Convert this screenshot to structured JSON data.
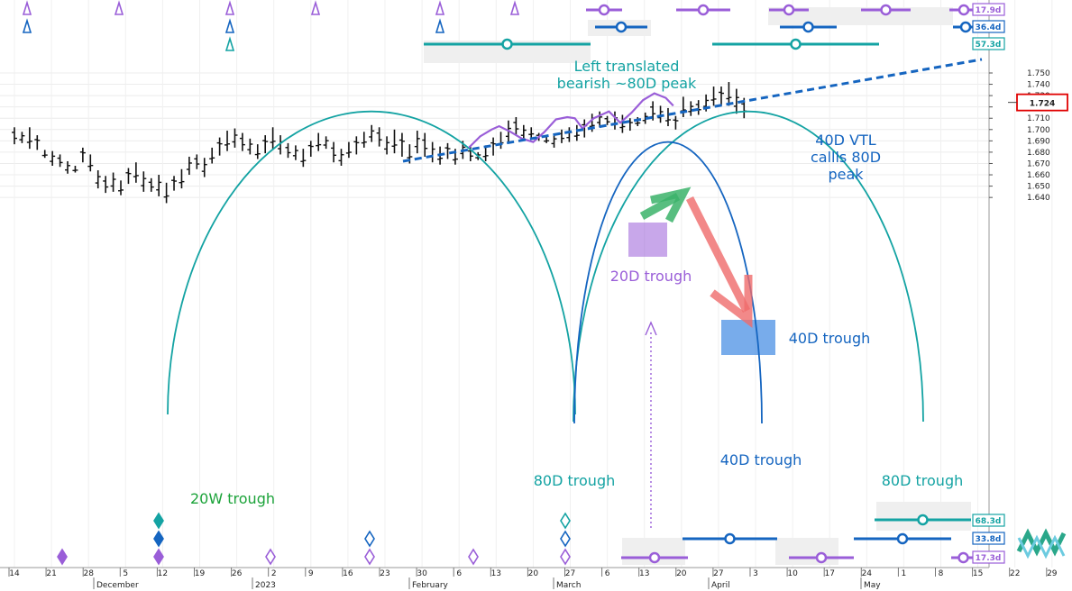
{
  "chart_data": {
    "type": "ohlc",
    "y_axis": {
      "side": "right",
      "range": [
        1.631,
        1.759
      ],
      "ticks": [
        "1.750",
        "1.740",
        "1.730",
        "1.720",
        "1.710",
        "1.700",
        "1.690",
        "1.680",
        "1.670",
        "1.660",
        "1.650",
        "1.640"
      ],
      "grid": true
    },
    "x_axis": {
      "day_labels": [
        "14",
        "21",
        "28",
        "5",
        "12",
        "19",
        "26",
        "2",
        "9",
        "16",
        "23",
        "30",
        "6",
        "13",
        "20",
        "27",
        "6",
        "13",
        "20",
        "27",
        "3",
        "10",
        "17",
        "24",
        "1",
        "8",
        "15",
        "22",
        "29"
      ],
      "month_labels": [
        "December",
        "2023",
        "February",
        "March",
        "April",
        "May"
      ]
    },
    "current_price": {
      "value": 1.724,
      "label": "1.724",
      "color": "#e00000"
    },
    "bars": [
      [
        1.702,
        1.687
      ],
      [
        1.698,
        1.688
      ],
      [
        1.702,
        1.683
      ],
      [
        1.695,
        1.682
      ],
      [
        1.682,
        1.675
      ],
      [
        1.681,
        1.668
      ],
      [
        1.678,
        1.667
      ],
      [
        1.672,
        1.661
      ],
      [
        1.668,
        1.662
      ],
      [
        1.684,
        1.671
      ],
      [
        1.678,
        1.663
      ],
      [
        1.664,
        1.648
      ],
      [
        1.659,
        1.644
      ],
      [
        1.662,
        1.645
      ],
      [
        1.655,
        1.642
      ],
      [
        1.666,
        1.652
      ],
      [
        1.671,
        1.653
      ],
      [
        1.663,
        1.645
      ],
      [
        1.657,
        1.645
      ],
      [
        1.66,
        1.641
      ],
      [
        1.653,
        1.635
      ],
      [
        1.659,
        1.646
      ],
      [
        1.665,
        1.648
      ],
      [
        1.676,
        1.66
      ],
      [
        1.678,
        1.665
      ],
      [
        1.675,
        1.658
      ],
      [
        1.684,
        1.67
      ],
      [
        1.693,
        1.677
      ],
      [
        1.699,
        1.681
      ],
      [
        1.701,
        1.684
      ],
      [
        1.697,
        1.681
      ],
      [
        1.692,
        1.678
      ],
      [
        1.687,
        1.674
      ],
      [
        1.695,
        1.679
      ],
      [
        1.702,
        1.683
      ],
      [
        1.695,
        1.678
      ],
      [
        1.688,
        1.675
      ],
      [
        1.686,
        1.673
      ],
      [
        1.683,
        1.667
      ],
      [
        1.69,
        1.676
      ],
      [
        1.697,
        1.681
      ],
      [
        1.694,
        1.683
      ],
      [
        1.689,
        1.671
      ],
      [
        1.683,
        1.668
      ],
      [
        1.689,
        1.675
      ],
      [
        1.694,
        1.678
      ],
      [
        1.698,
        1.684
      ],
      [
        1.704,
        1.689
      ],
      [
        1.702,
        1.685
      ],
      [
        1.694,
        1.678
      ],
      [
        1.7,
        1.679
      ],
      [
        1.697,
        1.676
      ],
      [
        1.687,
        1.67
      ],
      [
        1.699,
        1.679
      ],
      [
        1.697,
        1.676
      ],
      [
        1.689,
        1.671
      ],
      [
        1.685,
        1.669
      ],
      [
        1.688,
        1.674
      ],
      [
        1.683,
        1.669
      ],
      [
        1.69,
        1.674
      ],
      [
        1.685,
        1.672
      ],
      [
        1.68,
        1.673
      ],
      [
        1.686,
        1.672
      ],
      [
        1.693,
        1.677
      ],
      [
        1.698,
        1.683
      ],
      [
        1.708,
        1.688
      ],
      [
        1.711,
        1.695
      ],
      [
        1.704,
        1.691
      ],
      [
        1.702,
        1.693
      ],
      [
        1.697,
        1.69
      ],
      [
        1.694,
        1.688
      ],
      [
        1.696,
        1.684
      ],
      [
        1.7,
        1.688
      ],
      [
        1.702,
        1.689
      ],
      [
        1.704,
        1.69
      ],
      [
        1.709,
        1.693
      ],
      [
        1.714,
        1.698
      ],
      [
        1.716,
        1.702
      ],
      [
        1.712,
        1.704
      ],
      [
        1.716,
        1.7
      ],
      [
        1.713,
        1.697
      ],
      [
        1.71,
        1.699
      ],
      [
        1.711,
        1.703
      ],
      [
        1.715,
        1.705
      ],
      [
        1.725,
        1.708
      ],
      [
        1.721,
        1.706
      ],
      [
        1.719,
        1.703
      ],
      [
        1.712,
        1.7
      ],
      [
        1.729,
        1.711
      ],
      [
        1.725,
        1.712
      ],
      [
        1.726,
        1.713
      ],
      [
        1.731,
        1.716
      ],
      [
        1.738,
        1.721
      ],
      [
        1.738,
        1.721
      ],
      [
        1.742,
        1.721
      ],
      [
        1.736,
        1.714
      ],
      [
        1.728,
        1.71
      ]
    ],
    "price_model": [
      [
        0,
        1.684
      ],
      [
        3,
        1.694
      ],
      [
        6,
        1.7
      ],
      [
        8,
        1.703
      ],
      [
        11,
        1.698
      ],
      [
        14,
        1.692
      ],
      [
        17,
        1.689
      ],
      [
        20,
        1.698
      ],
      [
        23,
        1.709
      ],
      [
        26,
        1.711
      ],
      [
        28,
        1.71
      ],
      [
        30,
        1.701
      ],
      [
        33,
        1.71
      ],
      [
        37,
        1.716
      ],
      [
        40,
        1.706
      ],
      [
        43,
        1.715
      ],
      [
        46,
        1.726
      ],
      [
        49,
        1.732
      ],
      [
        52,
        1.728
      ],
      [
        54,
        1.721
      ]
    ],
    "trendline": {
      "label": "40D VTL",
      "from": [
        "2023-01-30",
        1.672
      ],
      "to": [
        "2023-05-22",
        1.762
      ]
    },
    "cycles": [
      {
        "name": "20W",
        "peak": 1.716,
        "color": "#14a3a3"
      },
      {
        "name": "80D",
        "peak": 1.716,
        "color": "#14a3a3"
      },
      {
        "name": "40D",
        "peak": 1.689,
        "color": "#1565c0"
      }
    ],
    "period_boxes": [
      {
        "label": "17.9d",
        "color": "#9a5ed8"
      },
      {
        "label": "36.4d",
        "color": "#1565c0"
      },
      {
        "label": "57.3d",
        "color": "#14a3a3"
      },
      {
        "label": "68.3d",
        "color": "#14a3a3"
      },
      {
        "label": "33.8d",
        "color": "#1565c0"
      },
      {
        "label": "17.3d",
        "color": "#9a5ed8"
      }
    ],
    "annotations": [
      {
        "id": "left-translated",
        "lines": [
          "Left translated",
          "bearish ~80D peak"
        ],
        "color": "#14a3a3"
      },
      {
        "id": "vtl-note",
        "lines": [
          "40D VTL",
          "callls 80D",
          "peak"
        ],
        "color": "#1565c0"
      },
      {
        "id": "t20d",
        "lines": [
          "20D trough"
        ],
        "color": "#9a5ed8"
      },
      {
        "id": "t40d-box",
        "lines": [
          "40D trough"
        ],
        "color": "#1565c0"
      },
      {
        "id": "t40d-bottom",
        "lines": [
          "40D trough"
        ],
        "color": "#1565c0"
      },
      {
        "id": "t80d-left",
        "lines": [
          "80D trough"
        ],
        "color": "#14a3a3"
      },
      {
        "id": "t80d-right",
        "lines": [
          "80D trough"
        ],
        "color": "#14a3a3"
      },
      {
        "id": "t20w",
        "lines": [
          "20W trough"
        ],
        "color": "#1ca33a"
      }
    ]
  },
  "colors": {
    "purple": "#9a5ed8",
    "blue": "#1565c0",
    "teal": "#14a3a3",
    "green": "#1ca33a",
    "red_arrow": "#ef6b6b",
    "green_arrow": "#3bb36a"
  }
}
